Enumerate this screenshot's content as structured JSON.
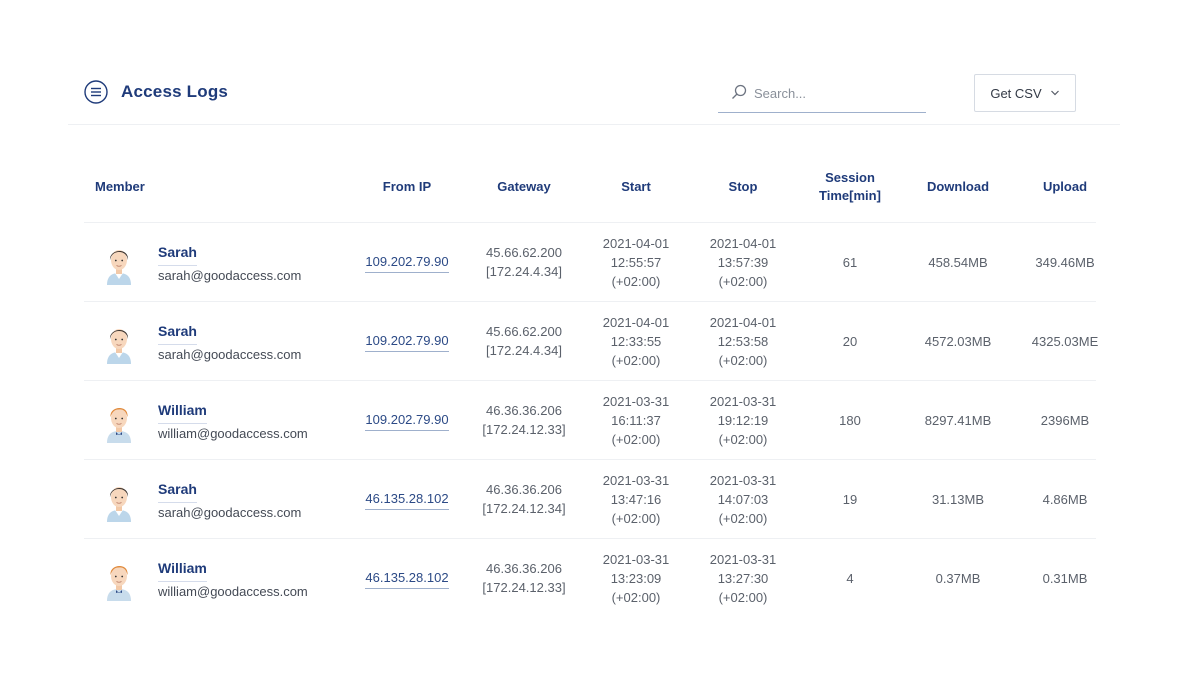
{
  "header": {
    "title": "Access Logs",
    "search_placeholder": "Search...",
    "csv_label": "Get CSV"
  },
  "colors": {
    "title": "#1f3b7a",
    "link": "#2c4a86",
    "text": "#5b616b"
  },
  "columns": {
    "member": "Member",
    "from_ip": "From IP",
    "gateway": "Gateway",
    "start": "Start",
    "stop": "Stop",
    "session_line1": "Session",
    "session_line2": "Time[min]",
    "download": "Download",
    "upload": "Upload"
  },
  "rows": [
    {
      "name": "Sarah",
      "email": "sarah@goodaccess.com",
      "avatar": "female-avatar",
      "from_ip": "109.202.79.90",
      "gateway_ip": "45.66.62.200",
      "gateway_internal": "[172.24.4.34]",
      "start_date": "2021-04-01",
      "start_time": "12:55:57",
      "start_tz": "(+02:00)",
      "stop_date": "2021-04-01",
      "stop_time": "13:57:39",
      "stop_tz": "(+02:00)",
      "session": "61",
      "download": "458.54MB",
      "upload": "349.46MB"
    },
    {
      "name": "Sarah",
      "email": "sarah@goodaccess.com",
      "avatar": "female-avatar",
      "from_ip": "109.202.79.90",
      "gateway_ip": "45.66.62.200",
      "gateway_internal": "[172.24.4.34]",
      "start_date": "2021-04-01",
      "start_time": "12:33:55",
      "start_tz": "(+02:00)",
      "stop_date": "2021-04-01",
      "stop_time": "12:53:58",
      "stop_tz": "(+02:00)",
      "session": "20",
      "download": "4572.03MB",
      "upload": "4325.03ME"
    },
    {
      "name": "William",
      "email": "william@goodaccess.com",
      "avatar": "male-avatar",
      "from_ip": "109.202.79.90",
      "gateway_ip": "46.36.36.206",
      "gateway_internal": "[172.24.12.33]",
      "start_date": "2021-03-31",
      "start_time": "16:11:37",
      "start_tz": "(+02:00)",
      "stop_date": "2021-03-31",
      "stop_time": "19:12:19",
      "stop_tz": "(+02:00)",
      "session": "180",
      "download": "8297.41MB",
      "upload": "2396MB"
    },
    {
      "name": "Sarah",
      "email": "sarah@goodaccess.com",
      "avatar": "female-avatar",
      "from_ip": "46.135.28.102",
      "gateway_ip": "46.36.36.206",
      "gateway_internal": "[172.24.12.34]",
      "start_date": "2021-03-31",
      "start_time": "13:47:16",
      "start_tz": "(+02:00)",
      "stop_date": "2021-03-31",
      "stop_time": "14:07:03",
      "stop_tz": "(+02:00)",
      "session": "19",
      "download": "31.13MB",
      "upload": "4.86MB"
    },
    {
      "name": "William",
      "email": "william@goodaccess.com",
      "avatar": "male-avatar",
      "from_ip": "46.135.28.102",
      "gateway_ip": "46.36.36.206",
      "gateway_internal": "[172.24.12.33]",
      "start_date": "2021-03-31",
      "start_time": "13:23:09",
      "start_tz": "(+02:00)",
      "stop_date": "2021-03-31",
      "stop_time": "13:27:30",
      "stop_tz": "(+02:00)",
      "session": "4",
      "download": "0.37MB",
      "upload": "0.31MB"
    }
  ]
}
